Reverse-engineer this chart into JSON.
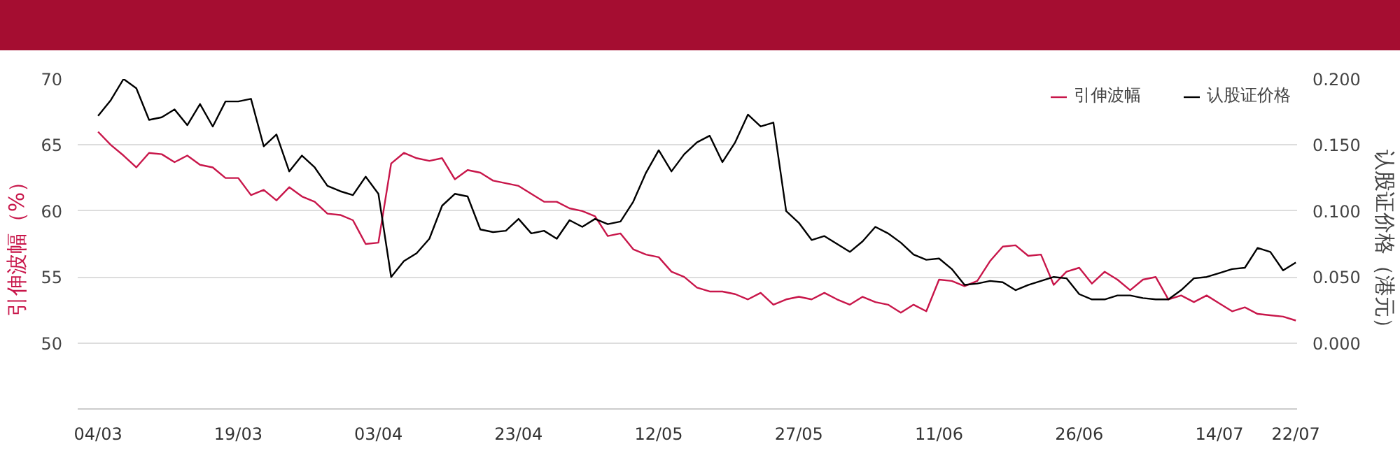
{
  "chart_data": {
    "type": "line",
    "ylabel": "引伸波幅（%）",
    "y2label": "认股证价格（港元）",
    "categories": [
      "04/03",
      null,
      null,
      null,
      null,
      null,
      null,
      null,
      null,
      null,
      null,
      "19/03",
      null,
      null,
      null,
      null,
      null,
      null,
      null,
      null,
      null,
      null,
      "03/04",
      null,
      null,
      null,
      null,
      null,
      null,
      null,
      null,
      null,
      null,
      "23/04",
      null,
      null,
      null,
      null,
      null,
      null,
      null,
      null,
      null,
      null,
      "12/05",
      null,
      null,
      null,
      null,
      null,
      null,
      null,
      null,
      null,
      null,
      "27/05",
      null,
      null,
      null,
      null,
      null,
      null,
      null,
      null,
      null,
      null,
      "11/06",
      null,
      null,
      null,
      null,
      null,
      null,
      null,
      null,
      null,
      null,
      "26/06",
      null,
      null,
      null,
      null,
      null,
      null,
      null,
      null,
      null,
      null,
      "14/07",
      null,
      null,
      null,
      null,
      null,
      "22/07"
    ],
    "series": [
      {
        "name": "引伸波幅",
        "color": "#c8164a",
        "values": [
          66.0,
          65.0,
          64.2,
          63.3,
          64.4,
          64.3,
          63.7,
          64.2,
          63.5,
          63.3,
          62.5,
          62.5,
          61.2,
          61.6,
          60.8,
          61.8,
          61.1,
          60.7,
          59.8,
          59.7,
          59.3,
          57.5,
          57.6,
          63.6,
          64.4,
          64.0,
          63.8,
          64.0,
          62.4,
          63.1,
          62.9,
          62.3,
          62.1,
          61.9,
          61.3,
          60.7,
          60.7,
          60.2,
          60.0,
          59.6,
          58.1,
          58.3,
          57.1,
          56.7,
          56.5,
          55.4,
          55.0,
          54.2,
          53.9,
          53.9,
          53.7,
          53.3,
          53.8,
          52.9,
          53.3,
          53.5,
          53.3,
          53.8,
          53.3,
          52.9,
          53.5,
          53.1,
          52.9,
          52.3,
          52.9,
          52.4,
          54.8,
          54.7,
          54.3,
          54.7,
          56.2,
          57.3,
          57.4,
          56.6,
          56.7,
          54.4,
          55.4,
          55.7,
          54.5,
          55.4,
          54.8,
          54.0,
          54.8,
          55.0,
          53.3,
          53.6,
          53.1,
          53.6,
          53.0,
          52.4,
          52.7,
          52.2,
          52.1,
          52.0,
          51.7
        ]
      },
      {
        "name": "认股证价格",
        "color": "#000000",
        "axis": "y2",
        "values": [
          0.172,
          0.184,
          0.2,
          0.193,
          0.169,
          0.171,
          0.177,
          0.165,
          0.181,
          0.164,
          0.183,
          0.183,
          0.185,
          0.149,
          0.158,
          0.13,
          0.142,
          0.133,
          0.119,
          0.115,
          0.112,
          0.126,
          0.113,
          0.05,
          0.062,
          0.068,
          0.079,
          0.104,
          0.113,
          0.111,
          0.086,
          0.084,
          0.085,
          0.094,
          0.083,
          0.085,
          0.079,
          0.093,
          0.088,
          0.094,
          0.09,
          0.092,
          0.107,
          0.129,
          0.146,
          0.13,
          0.143,
          0.152,
          0.157,
          0.137,
          0.152,
          0.173,
          0.164,
          0.167,
          0.1,
          0.091,
          0.078,
          0.081,
          0.075,
          0.069,
          0.077,
          0.088,
          0.083,
          0.076,
          0.067,
          0.063,
          0.064,
          0.056,
          0.044,
          0.045,
          0.047,
          0.046,
          0.04,
          0.044,
          0.047,
          0.05,
          0.049,
          0.037,
          0.033,
          0.033,
          0.036,
          0.036,
          0.034,
          0.033,
          0.033,
          0.04,
          0.049,
          0.05,
          0.053,
          0.056,
          0.057,
          0.072,
          0.069,
          0.055,
          0.061
        ]
      }
    ],
    "ylim": [
      45,
      70
    ],
    "yticks": [
      50,
      55,
      60,
      65,
      70
    ],
    "y2lim": [
      -0.05,
      0.2
    ],
    "y2ticks": [
      {
        "value": 0,
        "label": "0.000"
      },
      {
        "value": 0.05,
        "label": "0.050"
      },
      {
        "value": 0.1,
        "label": "0.100"
      },
      {
        "value": 0.15,
        "label": "0.150"
      },
      {
        "value": 0.2,
        "label": "0.200"
      }
    ],
    "grid": "y",
    "legend": "top right"
  }
}
